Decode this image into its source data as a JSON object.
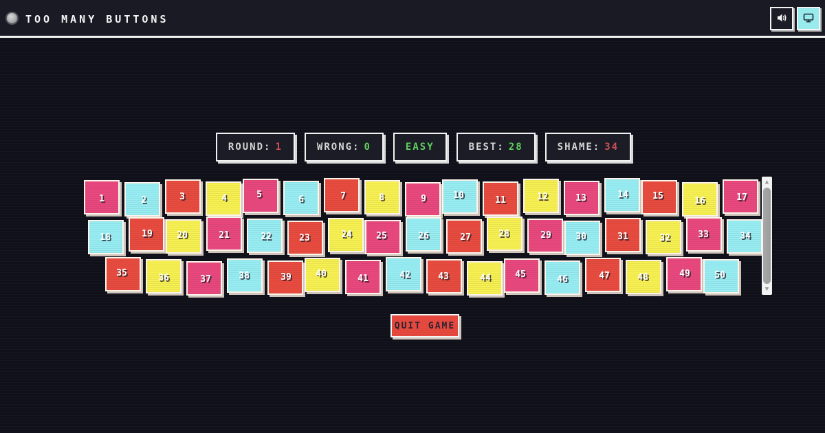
{
  "header": {
    "title": "TOO MANY BUTTONS"
  },
  "stats": [
    {
      "label": "ROUND:",
      "value": "1",
      "label_color": "#d6d6d6",
      "value_color": "#cc4f55"
    },
    {
      "label": "WRONG:",
      "value": "0",
      "label_color": "#d6d6d6",
      "value_color": "#5ecf5e"
    },
    {
      "label": "EASY",
      "value": "",
      "label_color": "#5ecf5e",
      "value_color": "#5ecf5e"
    },
    {
      "label": "BEST:",
      "value": "28",
      "label_color": "#d6d6d6",
      "value_color": "#5ecf5e"
    },
    {
      "label": "SHAME:",
      "value": "34",
      "label_color": "#d6d6d6",
      "value_color": "#cc4f55"
    }
  ],
  "board": {
    "palette": {
      "pink": "#e8487d",
      "cyan": "#97edf2",
      "red": "#e84b3f",
      "yellow": "#f7f052"
    },
    "rows": [
      [
        {
          "n": "1",
          "color": "pink"
        },
        {
          "n": "2",
          "color": "cyan"
        },
        {
          "n": "3",
          "color": "red"
        },
        {
          "n": "4",
          "color": "yellow"
        },
        {
          "n": "5",
          "color": "pink"
        },
        {
          "n": "6",
          "color": "cyan"
        },
        {
          "n": "7",
          "color": "red"
        },
        {
          "n": "8",
          "color": "yellow"
        },
        {
          "n": "9",
          "color": "pink"
        },
        {
          "n": "10",
          "color": "cyan"
        },
        {
          "n": "11",
          "color": "red"
        },
        {
          "n": "12",
          "color": "yellow"
        },
        {
          "n": "13",
          "color": "pink"
        },
        {
          "n": "14",
          "color": "cyan"
        },
        {
          "n": "15",
          "color": "red"
        },
        {
          "n": "16",
          "color": "yellow"
        },
        {
          "n": "17",
          "color": "pink"
        }
      ],
      [
        {
          "n": "18",
          "color": "cyan"
        },
        {
          "n": "19",
          "color": "red"
        },
        {
          "n": "20",
          "color": "yellow"
        },
        {
          "n": "21",
          "color": "pink"
        },
        {
          "n": "22",
          "color": "cyan"
        },
        {
          "n": "23",
          "color": "red"
        },
        {
          "n": "24",
          "color": "yellow"
        },
        {
          "n": "25",
          "color": "pink"
        },
        {
          "n": "26",
          "color": "cyan"
        },
        {
          "n": "27",
          "color": "red"
        },
        {
          "n": "28",
          "color": "yellow"
        },
        {
          "n": "29",
          "color": "pink"
        },
        {
          "n": "30",
          "color": "cyan"
        },
        {
          "n": "31",
          "color": "red"
        },
        {
          "n": "32",
          "color": "yellow"
        },
        {
          "n": "33",
          "color": "pink"
        },
        {
          "n": "34",
          "color": "cyan"
        }
      ],
      [
        {
          "n": "35",
          "color": "red"
        },
        {
          "n": "36",
          "color": "yellow"
        },
        {
          "n": "37",
          "color": "pink"
        },
        {
          "n": "38",
          "color": "cyan"
        },
        {
          "n": "39",
          "color": "red"
        },
        {
          "n": "40",
          "color": "yellow"
        },
        {
          "n": "41",
          "color": "pink"
        },
        {
          "n": "42",
          "color": "cyan"
        },
        {
          "n": "43",
          "color": "red"
        },
        {
          "n": "44",
          "color": "yellow"
        },
        {
          "n": "45",
          "color": "pink"
        },
        {
          "n": "46",
          "color": "cyan"
        },
        {
          "n": "47",
          "color": "red"
        },
        {
          "n": "48",
          "color": "yellow"
        },
        {
          "n": "49",
          "color": "pink"
        },
        {
          "n": "50",
          "color": "cyan"
        }
      ]
    ]
  },
  "quit_button": {
    "label": "QUIT GAME"
  },
  "scrollbar": {
    "up_arrow": "▲",
    "down_arrow": "▼"
  }
}
